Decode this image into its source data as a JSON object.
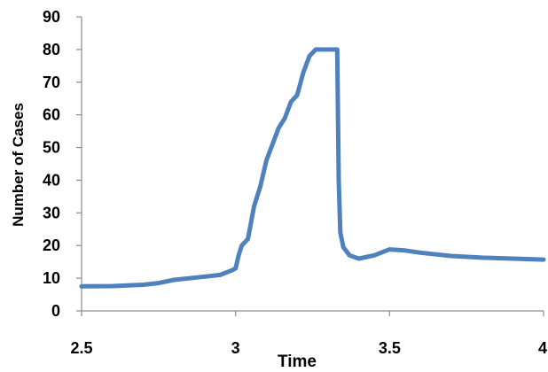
{
  "chart_data": {
    "type": "line",
    "title": "",
    "xlabel": "Time",
    "ylabel": "Number of Cases",
    "xlim": [
      2.5,
      4
    ],
    "ylim": [
      0,
      90
    ],
    "x_ticks": [
      2.5,
      3,
      3.5,
      4
    ],
    "x_tick_labels": [
      "2.5",
      "3",
      "3.5",
      "4"
    ],
    "y_ticks": [
      0,
      10,
      20,
      30,
      40,
      50,
      60,
      70,
      80,
      90
    ],
    "y_tick_labels": [
      "0",
      "10",
      "20",
      "30",
      "40",
      "50",
      "60",
      "70",
      "80",
      "90"
    ],
    "grid": false,
    "legend": "none",
    "series": [
      {
        "color": "#4f81bd",
        "x": [
          2.5,
          2.6,
          2.7,
          2.75,
          2.8,
          2.9,
          2.95,
          2.99,
          3.0,
          3.01,
          3.02,
          3.04,
          3.06,
          3.08,
          3.1,
          3.12,
          3.14,
          3.16,
          3.18,
          3.2,
          3.22,
          3.24,
          3.26,
          3.28,
          3.29,
          3.31,
          3.33,
          3.335,
          3.34,
          3.35,
          3.37,
          3.4,
          3.45,
          3.5,
          3.55,
          3.6,
          3.7,
          3.8,
          3.9,
          4.0
        ],
        "y": [
          7.5,
          7.6,
          8.0,
          8.5,
          9.5,
          10.5,
          11.0,
          12.5,
          13.0,
          17.0,
          20.0,
          22.0,
          32.0,
          38.0,
          46.0,
          51.0,
          56.0,
          59.0,
          64.0,
          66.0,
          73.0,
          78.0,
          80.0,
          80.0,
          80.0,
          80.0,
          80.0,
          40.0,
          24.0,
          19.5,
          17.0,
          16.0,
          17.0,
          18.8,
          18.5,
          17.8,
          16.8,
          16.3,
          16.0,
          15.7
        ]
      }
    ]
  }
}
